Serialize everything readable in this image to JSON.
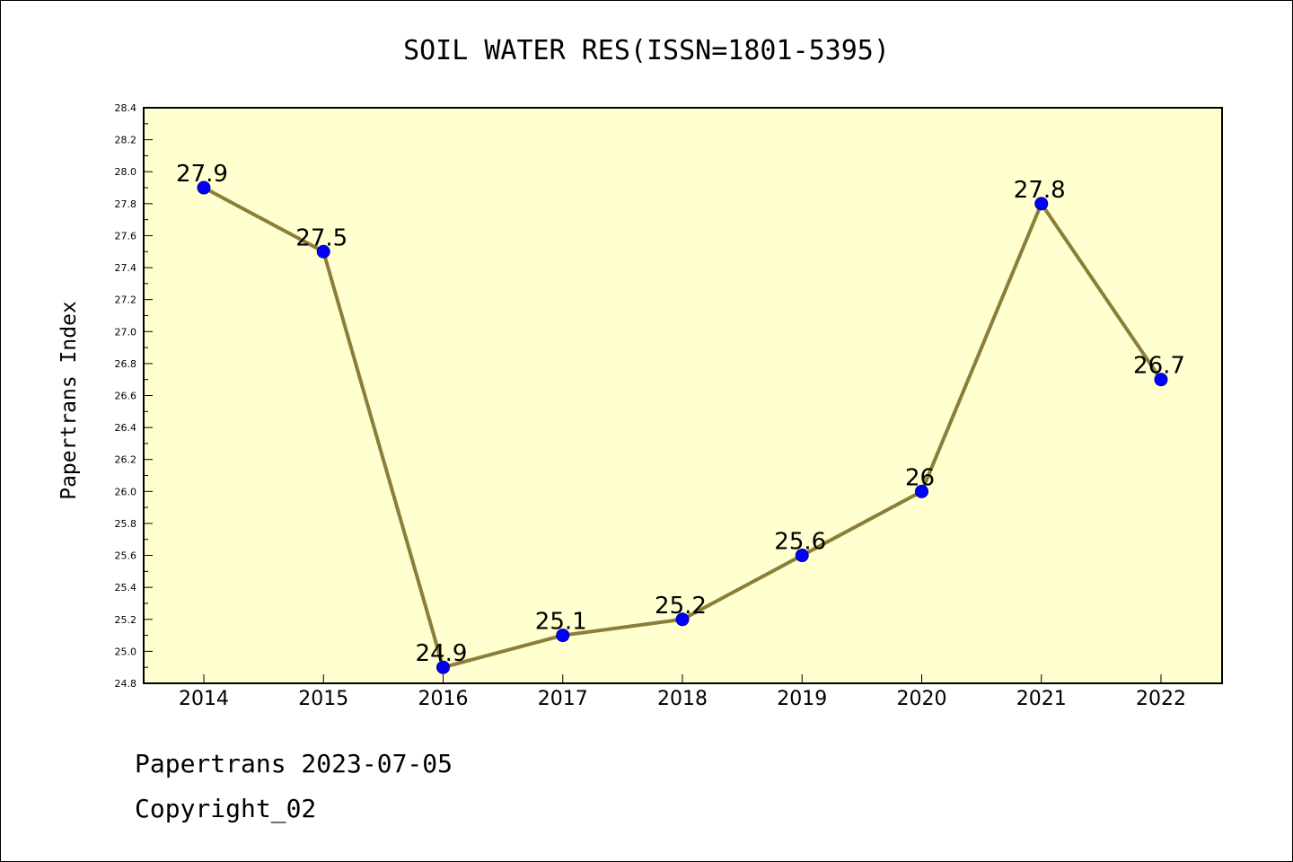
{
  "chart_data": {
    "type": "line",
    "title": "SOIL WATER RES(ISSN=1801-5395)",
    "ylabel": "Papertrans Index",
    "xlabel": "",
    "x": [
      "2014",
      "2015",
      "2016",
      "2017",
      "2018",
      "2019",
      "2020",
      "2021",
      "2022"
    ],
    "series": [
      {
        "values": [
          27.9,
          27.5,
          24.9,
          25.1,
          25.2,
          25.6,
          26.0,
          27.8,
          26.7
        ],
        "data_labels": [
          "27.9",
          "27.5",
          "24.9",
          "25.1",
          "25.2",
          "25.6",
          "26",
          "27.8",
          "26.7"
        ],
        "line_color": "#8b7d3a",
        "marker_color": "#0000ff"
      }
    ],
    "ylim": [
      24.8,
      28.4
    ],
    "yticks": [
      "24.8",
      "25.0",
      "25.2",
      "25.4",
      "25.6",
      "25.8",
      "26.0",
      "26.2",
      "26.4",
      "26.6",
      "26.8",
      "27.0",
      "27.2",
      "27.4",
      "27.6",
      "27.8",
      "28.0",
      "28.2",
      "28.4"
    ],
    "plot_background": "#ffffd0",
    "grid": false,
    "legend": "none"
  },
  "footer": {
    "line1": "Papertrans 2023-07-05",
    "line2": "Copyright_02"
  }
}
